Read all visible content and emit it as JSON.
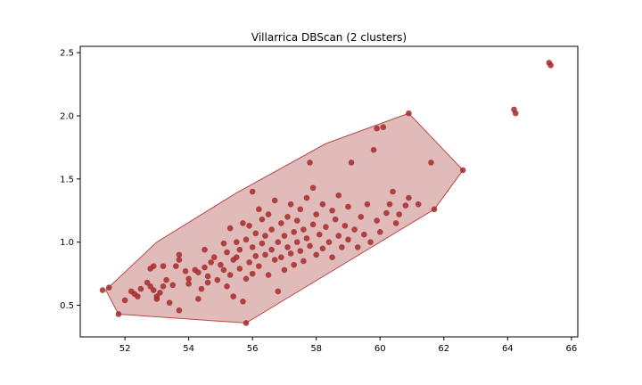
{
  "chart_data": {
    "type": "scatter",
    "title": "Villarrica DBScan (2 clusters)",
    "xlabel": "",
    "ylabel": "",
    "xlim": [
      50.6,
      66.2
    ],
    "ylim": [
      0.25,
      2.55
    ],
    "xticks": [
      52,
      54,
      56,
      58,
      60,
      62,
      64,
      66
    ],
    "yticks": [
      0.5,
      1.0,
      1.5,
      2.0,
      2.5
    ],
    "xtick_labels": [
      "52",
      "54",
      "56",
      "58",
      "60",
      "62",
      "64",
      "66"
    ],
    "ytick_labels": [
      "0.5",
      "1.0",
      "1.5",
      "2.0",
      "2.5"
    ],
    "grid": false,
    "marker_color": "#a52a2a",
    "hull_fill": "#cd8c8c",
    "hull_stroke": "#b84a4a",
    "hull": [
      [
        51.4,
        0.62
      ],
      [
        51.8,
        0.43
      ],
      [
        55.8,
        0.36
      ],
      [
        61.7,
        1.26
      ],
      [
        62.6,
        1.57
      ],
      [
        60.9,
        2.02
      ],
      [
        58.3,
        1.78
      ],
      [
        55.5,
        1.39
      ],
      [
        53.0,
        1.0
      ],
      [
        51.4,
        0.62
      ]
    ],
    "series": [
      {
        "points": [
          [
            51.3,
            0.62
          ],
          [
            51.5,
            0.64
          ],
          [
            51.8,
            0.43
          ],
          [
            52.0,
            0.54
          ],
          [
            52.2,
            0.61
          ],
          [
            52.3,
            0.59
          ],
          [
            52.4,
            0.57
          ],
          [
            52.5,
            0.63
          ],
          [
            52.7,
            0.68
          ],
          [
            52.8,
            0.65
          ],
          [
            52.8,
            0.79
          ],
          [
            52.9,
            0.81
          ],
          [
            52.9,
            0.62
          ],
          [
            53.0,
            0.57
          ],
          [
            53.0,
            0.55
          ],
          [
            53.1,
            0.6
          ],
          [
            53.2,
            0.81
          ],
          [
            53.2,
            0.65
          ],
          [
            53.3,
            0.7
          ],
          [
            53.4,
            0.52
          ],
          [
            53.5,
            0.66
          ],
          [
            53.6,
            0.81
          ],
          [
            53.7,
            0.9
          ],
          [
            53.7,
            0.86
          ],
          [
            53.7,
            0.46
          ],
          [
            53.9,
            0.77
          ],
          [
            54.0,
            0.71
          ],
          [
            54.0,
            0.67
          ],
          [
            54.2,
            0.78
          ],
          [
            54.3,
            0.76
          ],
          [
            54.3,
            0.55
          ],
          [
            54.4,
            0.63
          ],
          [
            54.5,
            0.8
          ],
          [
            54.5,
            0.94
          ],
          [
            54.6,
            0.73
          ],
          [
            54.6,
            0.68
          ],
          [
            54.7,
            0.84
          ],
          [
            54.8,
            0.88
          ],
          [
            54.9,
            0.7
          ],
          [
            55.0,
            0.82
          ],
          [
            55.1,
            0.78
          ],
          [
            55.1,
            0.99
          ],
          [
            55.2,
            0.65
          ],
          [
            55.2,
            0.92
          ],
          [
            55.3,
            1.11
          ],
          [
            55.3,
            0.74
          ],
          [
            55.4,
            0.86
          ],
          [
            55.4,
            0.57
          ],
          [
            55.5,
            0.88
          ],
          [
            55.5,
            1.0
          ],
          [
            55.6,
            0.79
          ],
          [
            55.6,
            0.94
          ],
          [
            55.7,
            1.15
          ],
          [
            55.7,
            0.53
          ],
          [
            55.8,
            0.36
          ],
          [
            55.8,
            0.71
          ],
          [
            55.8,
            1.02
          ],
          [
            55.9,
            0.84
          ],
          [
            55.9,
            1.13
          ],
          [
            56.0,
            0.96
          ],
          [
            56.0,
            1.4
          ],
          [
            56.0,
            0.75
          ],
          [
            56.1,
            0.89
          ],
          [
            56.1,
            1.07
          ],
          [
            56.2,
            1.26
          ],
          [
            56.2,
            0.81
          ],
          [
            56.3,
            0.99
          ],
          [
            56.3,
            1.18
          ],
          [
            56.4,
            0.9
          ],
          [
            56.4,
            1.05
          ],
          [
            56.5,
            0.74
          ],
          [
            56.5,
            1.22
          ],
          [
            56.6,
            0.94
          ],
          [
            56.6,
            1.1
          ],
          [
            56.7,
            0.86
          ],
          [
            56.7,
            1.33
          ],
          [
            56.8,
            1.0
          ],
          [
            56.8,
            0.61
          ],
          [
            56.9,
            1.15
          ],
          [
            56.9,
            0.88
          ],
          [
            57.0,
            1.05
          ],
          [
            57.0,
            0.78
          ],
          [
            57.1,
            1.2
          ],
          [
            57.1,
            0.96
          ],
          [
            57.2,
            0.91
          ],
          [
            57.2,
            1.3
          ],
          [
            57.3,
            1.08
          ],
          [
            57.3,
            0.82
          ],
          [
            57.4,
            1.0
          ],
          [
            57.4,
            1.17
          ],
          [
            57.5,
            0.93
          ],
          [
            57.5,
            1.26
          ],
          [
            57.6,
            1.1
          ],
          [
            57.6,
            0.85
          ],
          [
            57.7,
            1.03
          ],
          [
            57.7,
            1.35
          ],
          [
            57.8,
            0.97
          ],
          [
            57.8,
            1.63
          ],
          [
            57.9,
            1.14
          ],
          [
            57.9,
            1.43
          ],
          [
            58.0,
            0.9
          ],
          [
            58.0,
            1.22
          ],
          [
            58.1,
            1.06
          ],
          [
            58.2,
            1.3
          ],
          [
            58.2,
            0.95
          ],
          [
            58.3,
            1.12
          ],
          [
            58.4,
            1.0
          ],
          [
            58.5,
            1.25
          ],
          [
            58.5,
            0.88
          ],
          [
            58.6,
            1.18
          ],
          [
            58.7,
            1.05
          ],
          [
            58.7,
            1.37
          ],
          [
            58.8,
            0.96
          ],
          [
            58.9,
            1.13
          ],
          [
            59.0,
            1.28
          ],
          [
            59.0,
            1.02
          ],
          [
            59.1,
            1.63
          ],
          [
            59.2,
            1.1
          ],
          [
            59.3,
            0.96
          ],
          [
            59.4,
            1.2
          ],
          [
            59.5,
            1.06
          ],
          [
            59.6,
            1.3
          ],
          [
            59.7,
            1.0
          ],
          [
            59.8,
            1.73
          ],
          [
            59.9,
            1.9
          ],
          [
            59.9,
            1.17
          ],
          [
            60.0,
            1.08
          ],
          [
            60.1,
            1.91
          ],
          [
            60.2,
            1.23
          ],
          [
            60.3,
            1.3
          ],
          [
            60.4,
            1.4
          ],
          [
            60.5,
            1.15
          ],
          [
            60.6,
            1.22
          ],
          [
            60.8,
            1.29
          ],
          [
            60.9,
            2.02
          ],
          [
            60.9,
            1.35
          ],
          [
            61.2,
            1.3
          ],
          [
            61.6,
            1.63
          ],
          [
            61.7,
            1.26
          ],
          [
            62.6,
            1.57
          ],
          [
            64.2,
            2.05
          ],
          [
            64.25,
            2.02
          ],
          [
            65.3,
            2.42
          ],
          [
            65.35,
            2.4
          ]
        ]
      }
    ]
  }
}
